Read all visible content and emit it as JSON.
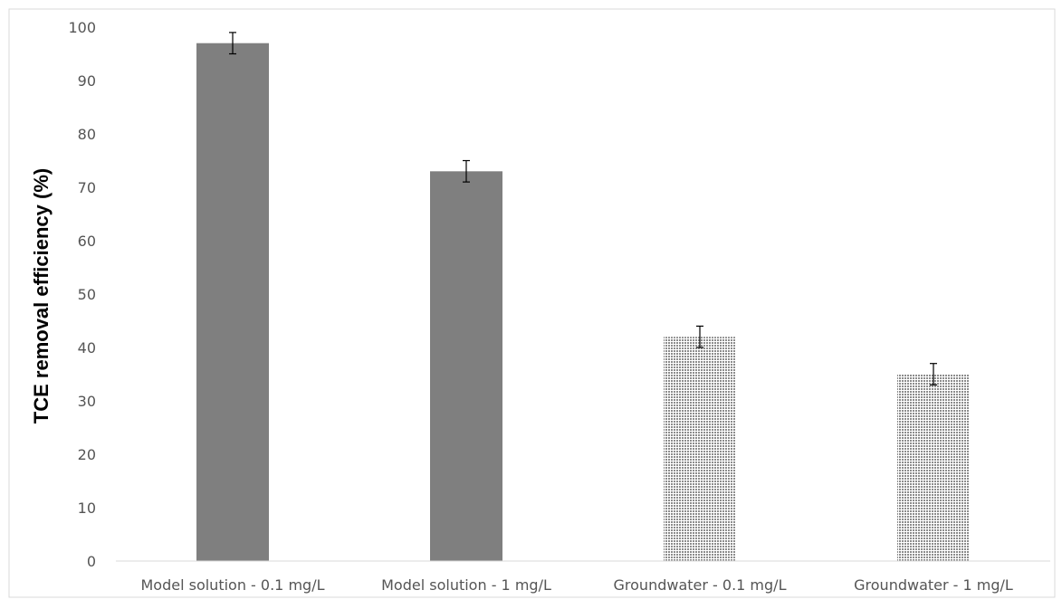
{
  "chart_data": {
    "type": "bar",
    "title": "",
    "xlabel": "",
    "ylabel": "TCE removal efficiency (%)",
    "ylim": [
      0,
      100
    ],
    "yticks": [
      0,
      10,
      20,
      30,
      40,
      50,
      60,
      70,
      80,
      90,
      100
    ],
    "grid": false,
    "legend": "none",
    "categories": [
      "Model solution - 0.1 mg/L",
      "Model solution - 1 mg/L",
      "Groundwater - 0.1 mg/L",
      "Groundwater - 1 mg/L"
    ],
    "values": [
      97,
      73,
      42,
      35
    ],
    "error": [
      2,
      2,
      2,
      2
    ],
    "fills": [
      "solid",
      "solid",
      "hatched",
      "hatched"
    ],
    "colors": {
      "solid_bar": "#7f7f7f",
      "hatched_bar": "#a6a6a6",
      "error_bar": "#000000",
      "axis": "#d9d9d9"
    }
  }
}
